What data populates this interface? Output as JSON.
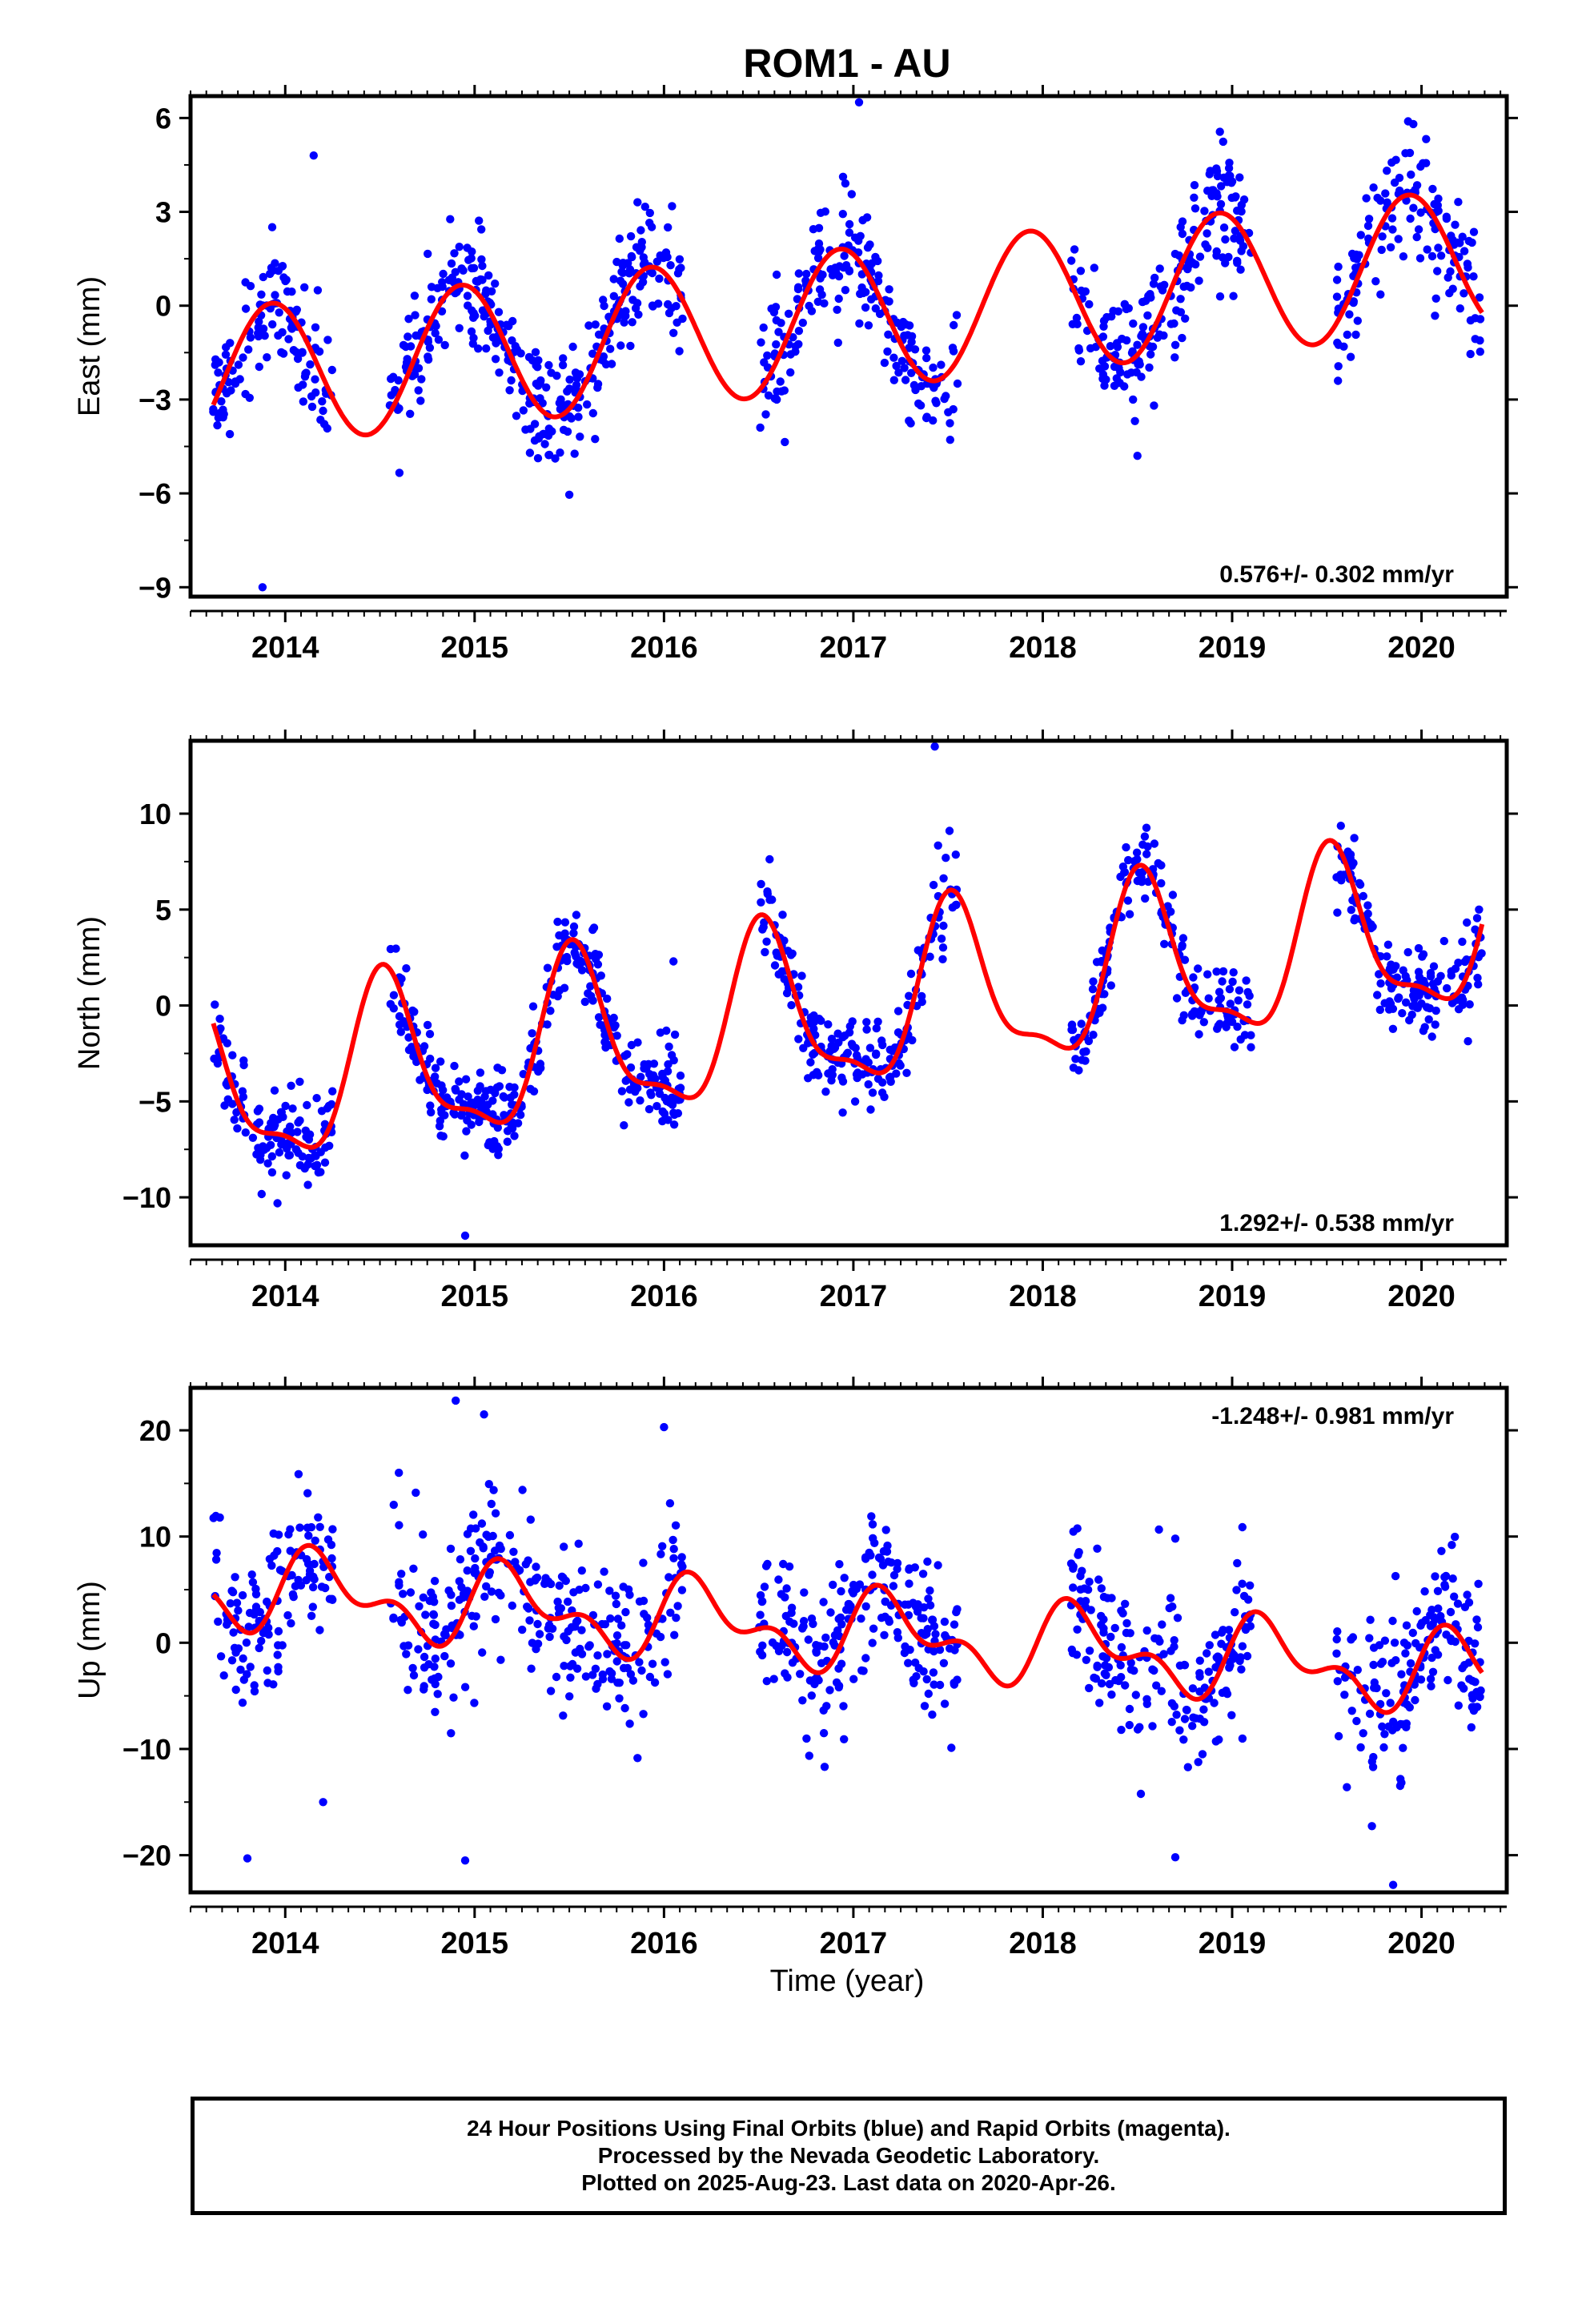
{
  "title": "ROM1 - AU",
  "xlabel": "Time (year)",
  "footer": {
    "line1": "24 Hour Positions Using Final Orbits (blue) and Rapid Orbits (magenta).",
    "line2": "Processed by the Nevada Geodetic Laboratory.",
    "line3": "Plotted on 2025-Aug-23. Last data on 2020-Apr-26."
  },
  "colors": {
    "points": "#0000ff",
    "model": "#ff0000",
    "axis": "#000000"
  },
  "chart_data": [
    {
      "type": "scatter",
      "ylabel": "East (mm)",
      "annotation": "0.576+/- 0.302 mm/yr",
      "annotation_position": "bottom-right",
      "xlim": [
        2013.5,
        2020.45
      ],
      "ylim": [
        -9.3,
        6.7
      ],
      "x_ticks": [
        2014,
        2015,
        2016,
        2017,
        2018,
        2019,
        2020
      ],
      "x_tick_labels": [
        "2014",
        "2015",
        "2016",
        "2017",
        "2018",
        "2019",
        "2020"
      ],
      "y_ticks": [
        -9,
        -6,
        -3,
        0,
        3,
        6
      ],
      "y_tick_labels": [
        "−9",
        "−6",
        "−3",
        "0",
        "3",
        "6"
      ],
      "data_gaps": [
        [
          2014.25,
          2014.55
        ],
        [
          2016.1,
          2016.5
        ],
        [
          2017.55,
          2018.15
        ],
        [
          2019.1,
          2019.55
        ]
      ],
      "model": {
        "offset": -0.4,
        "rate": 0.576,
        "t0": 2017.0,
        "annual_amp": 2.25,
        "peak_phase": 0.93,
        "semiannual_amp": 0.0,
        "semiannual_phase": 0.0
      },
      "noise_sd": 1.0,
      "point_count": 1000,
      "outliers": [
        [
          2013.88,
          -9.0
        ],
        [
          2014.15,
          4.8
        ],
        [
          2017.03,
          6.5
        ],
        [
          2018.5,
          -4.8
        ]
      ]
    },
    {
      "type": "scatter",
      "ylabel": "North (mm)",
      "annotation": "1.292+/- 0.538 mm/yr",
      "annotation_position": "bottom-right",
      "xlim": [
        2013.5,
        2020.45
      ],
      "ylim": [
        -12.5,
        13.8
      ],
      "x_ticks": [
        2014,
        2015,
        2016,
        2017,
        2018,
        2019,
        2020
      ],
      "x_tick_labels": [
        "2014",
        "2015",
        "2016",
        "2017",
        "2018",
        "2019",
        "2020"
      ],
      "y_ticks": [
        -10,
        -5,
        0,
        5,
        10
      ],
      "y_tick_labels": [
        "−10",
        "−5",
        "0",
        "5",
        "10"
      ],
      "data_gaps": [
        [
          2014.25,
          2014.55
        ],
        [
          2016.1,
          2016.5
        ],
        [
          2017.55,
          2018.15
        ],
        [
          2019.1,
          2019.55
        ]
      ],
      "model": {
        "offset": -0.2,
        "rate": 1.292,
        "t0": 2017.0,
        "annual_amp": 4.2,
        "peak_phase": 0.53,
        "semiannual_amp": 1.4,
        "semiannual_phase": 0.5
      },
      "noise_sd": 1.1,
      "point_count": 1000,
      "outliers": [
        [
          2017.43,
          13.5
        ],
        [
          2014.95,
          -12.0
        ],
        [
          2016.05,
          2.3
        ],
        [
          2016.05,
          -5.6
        ]
      ]
    },
    {
      "type": "scatter",
      "ylabel": "Up (mm)",
      "annotation": "-1.248+/- 0.981 mm/yr",
      "annotation_position": "top-right",
      "xlim": [
        2013.5,
        2020.45
      ],
      "ylim": [
        -23.5,
        24.0
      ],
      "x_ticks": [
        2014,
        2015,
        2016,
        2017,
        2018,
        2019,
        2020
      ],
      "x_tick_labels": [
        "2014",
        "2015",
        "2016",
        "2017",
        "2018",
        "2019",
        "2020"
      ],
      "y_ticks": [
        -20,
        -10,
        0,
        10,
        20
      ],
      "y_tick_labels": [
        "−20",
        "−10",
        "0",
        "10",
        "20"
      ],
      "data_gaps": [
        [
          2014.25,
          2014.55
        ],
        [
          2016.1,
          2016.5
        ],
        [
          2017.55,
          2018.15
        ],
        [
          2019.1,
          2019.55
        ]
      ],
      "model": {
        "offset": 1.0,
        "rate": -1.248,
        "t0": 2017.0,
        "annual_amp": 3.0,
        "peak_phase": 0.2,
        "semiannual_amp": 2.0,
        "semiannual_phase": 0.1
      },
      "noise_sd": 3.8,
      "point_count": 1000,
      "outliers": [
        [
          2013.8,
          -20.3
        ],
        [
          2014.95,
          -20.5
        ],
        [
          2014.9,
          22.8
        ],
        [
          2015.05,
          21.5
        ],
        [
          2014.6,
          16.0
        ],
        [
          2014.2,
          -15.0
        ],
        [
          2018.7,
          9.8
        ],
        [
          2018.7,
          -20.2
        ],
        [
          2019.85,
          -22.8
        ],
        [
          2016.0,
          20.3
        ]
      ]
    }
  ]
}
